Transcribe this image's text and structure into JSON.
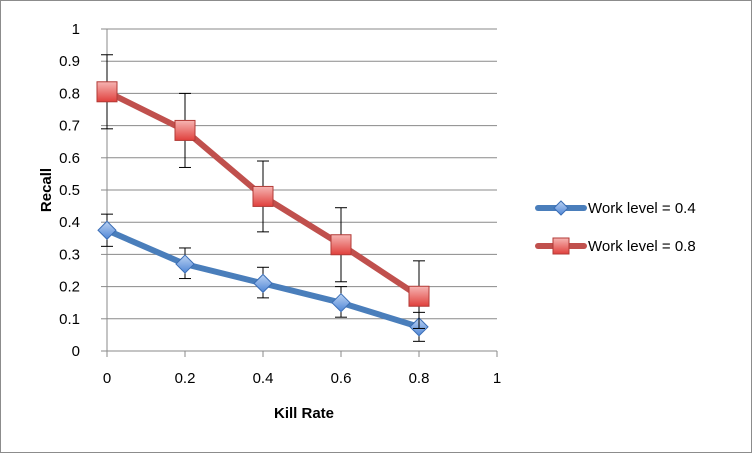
{
  "chart_data": {
    "type": "line",
    "xlabel": "Kill Rate",
    "ylabel": "Recall",
    "xlim": [
      0,
      1
    ],
    "ylim": [
      0,
      1
    ],
    "x_ticks": [
      "0",
      "0.2",
      "0.4",
      "0.6",
      "0.8",
      "1"
    ],
    "y_ticks": [
      "0",
      "0.1",
      "0.2",
      "0.3",
      "0.4",
      "0.5",
      "0.6",
      "0.7",
      "0.8",
      "0.9",
      "1"
    ],
    "grid": "horizontal",
    "legend_position": "right",
    "x": [
      0,
      0.2,
      0.4,
      0.6,
      0.8
    ],
    "series": [
      {
        "name": "Work level = 0.4",
        "color": "#4a7ebb",
        "marker": "diamond",
        "values": [
          0.375,
          0.27,
          0.21,
          0.15,
          0.075
        ],
        "error_low": [
          0.325,
          0.225,
          0.165,
          0.105,
          0.03
        ],
        "error_high": [
          0.425,
          0.32,
          0.26,
          0.2,
          0.12
        ]
      },
      {
        "name": "Work level = 0.8",
        "color": "#c0504d",
        "marker": "square",
        "values": [
          0.805,
          0.685,
          0.48,
          0.33,
          0.17
        ],
        "error_low": [
          0.69,
          0.57,
          0.37,
          0.215,
          0.07
        ],
        "error_high": [
          0.92,
          0.8,
          0.59,
          0.445,
          0.28
        ]
      }
    ]
  }
}
